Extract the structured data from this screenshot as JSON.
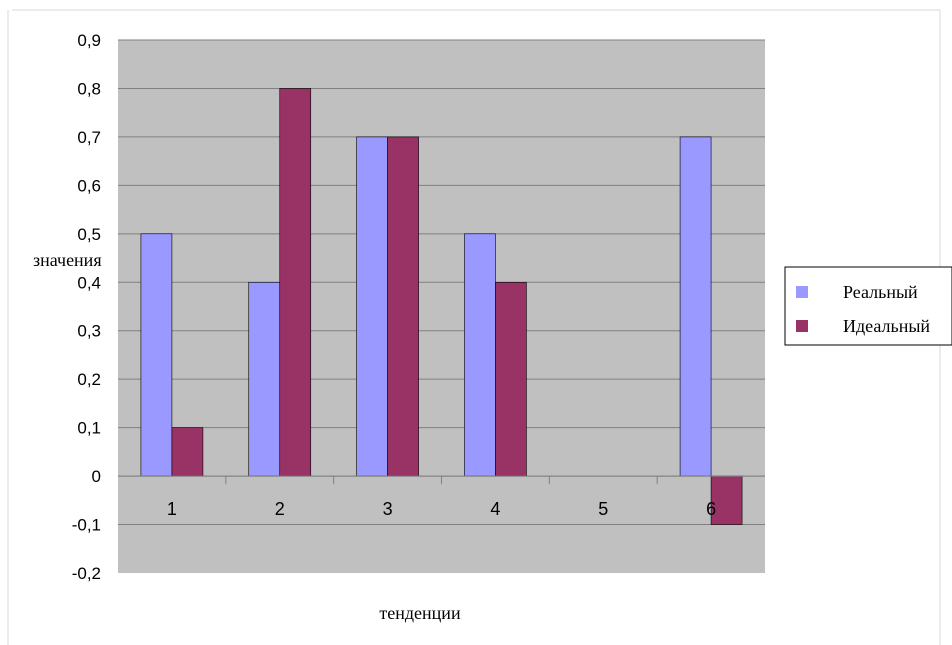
{
  "chart_data": {
    "type": "bar",
    "categories": [
      "1",
      "2",
      "3",
      "4",
      "5",
      "6"
    ],
    "series": [
      {
        "name": "Реальный",
        "values": [
          0.5,
          0.4,
          0.7,
          0.5,
          0,
          0.7
        ],
        "color": "#9999ff"
      },
      {
        "name": "Идеальный",
        "values": [
          0.1,
          0.8,
          0.7,
          0.4,
          0,
          -0.1
        ],
        "color": "#993366"
      }
    ],
    "ylim": [
      -0.2,
      0.9
    ],
    "yticks": [
      "-0,2",
      "-0,1",
      "0",
      "0,1",
      "0,2",
      "0,3",
      "0,4",
      "0,5",
      "0,6",
      "0,7",
      "0,8",
      "0,9"
    ],
    "xlabel": "тенденции",
    "ylabel": "значения",
    "grid": true,
    "legend_position": "right",
    "plot_background": "#c0c0c0"
  }
}
